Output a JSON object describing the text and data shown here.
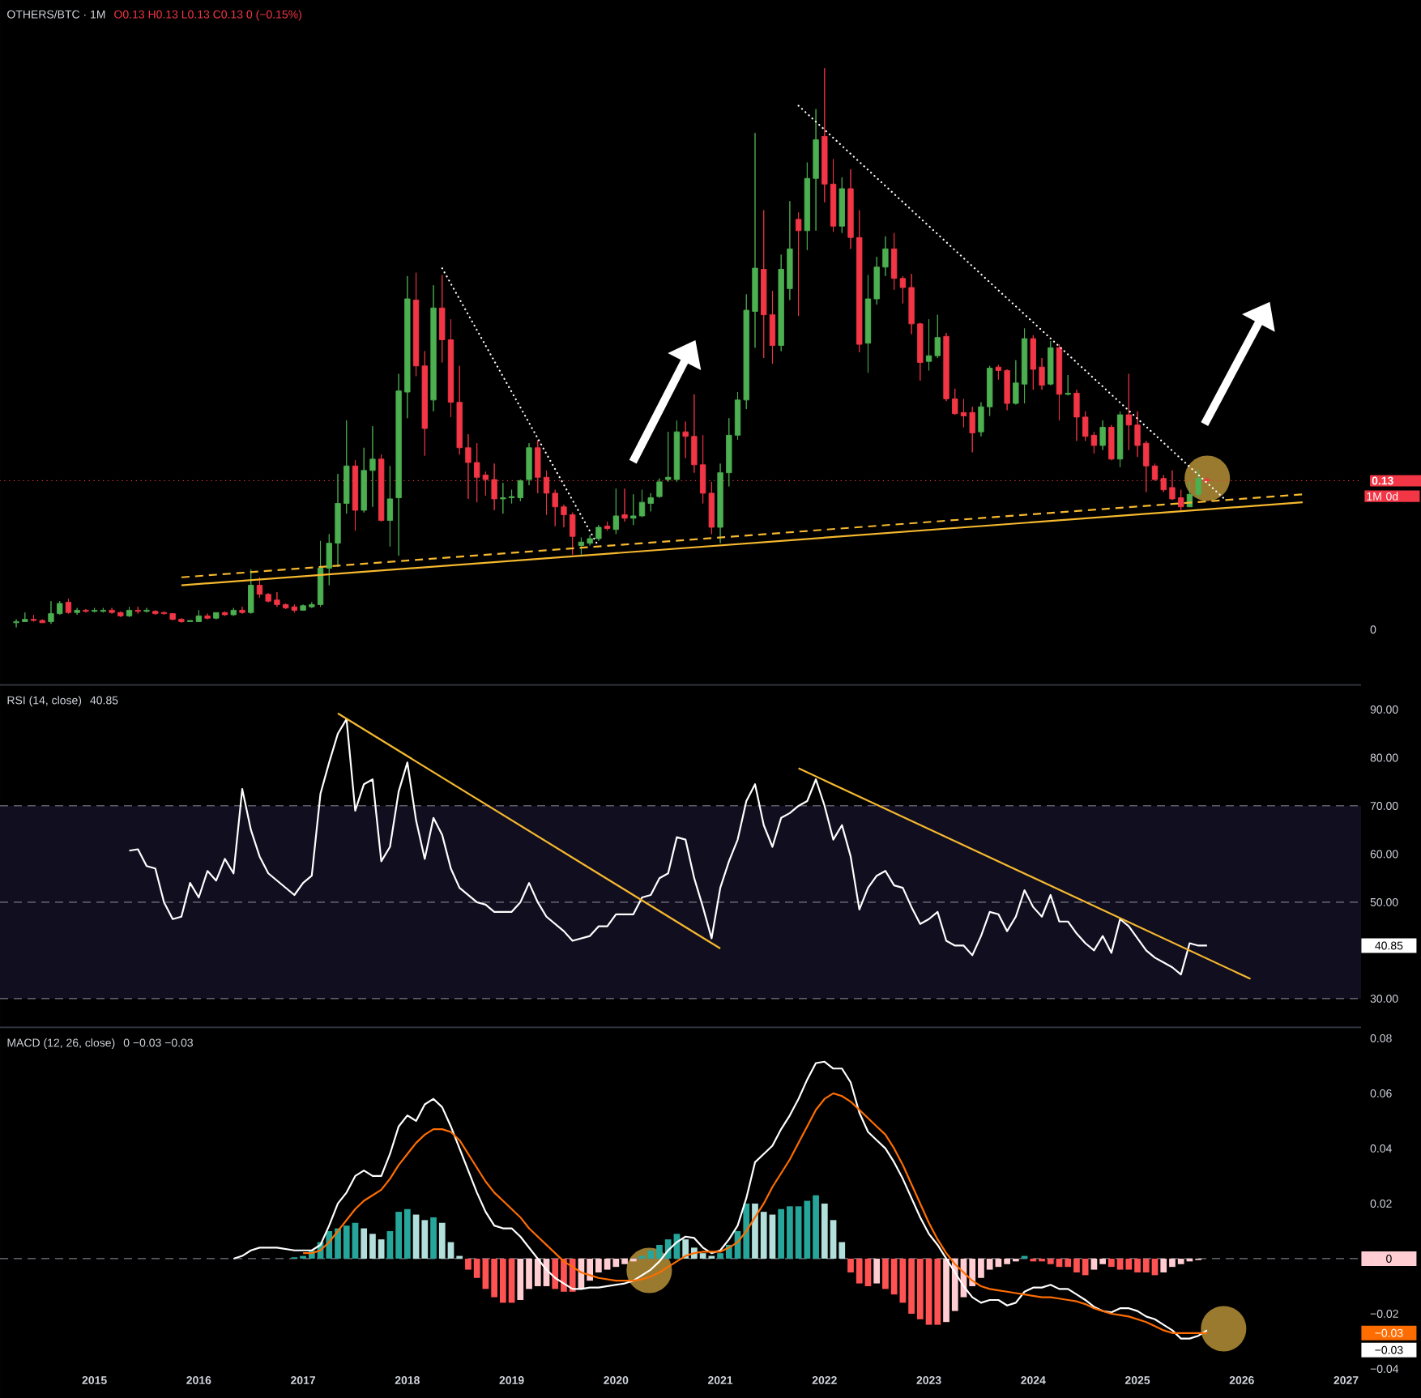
{
  "chart_data": [
    {
      "type": "candlestick",
      "title": "OTHERS/BTC · 1M",
      "subtitle": "O0.13 H0.13 L0.13 C0.13 0 (−0.15%)",
      "x": [
        "2014-04",
        "2014-05",
        "2014-06",
        "2014-07",
        "2014-08",
        "2014-09",
        "2014-10",
        "2014-11",
        "2014-12",
        "2015-01",
        "2015-02",
        "2015-03",
        "2015-04",
        "2015-05",
        "2015-06",
        "2015-07",
        "2015-08",
        "2015-09",
        "2015-10",
        "2015-11",
        "2015-12",
        "2016-01",
        "2016-02",
        "2016-03",
        "2016-04",
        "2016-05",
        "2016-06",
        "2016-07",
        "2016-08",
        "2016-09",
        "2016-10",
        "2016-11",
        "2016-12",
        "2017-01",
        "2017-02",
        "2017-03",
        "2017-04",
        "2017-05",
        "2017-06",
        "2017-07",
        "2017-08",
        "2017-09",
        "2017-10",
        "2017-11",
        "2017-12",
        "2018-01",
        "2018-02",
        "2018-03",
        "2018-04",
        "2018-05",
        "2018-06",
        "2018-07",
        "2018-08",
        "2018-09",
        "2018-10",
        "2018-11",
        "2018-12",
        "2019-01",
        "2019-02",
        "2019-03",
        "2019-04",
        "2019-05",
        "2019-06",
        "2019-07",
        "2019-08",
        "2019-09",
        "2019-10",
        "2019-11",
        "2019-12",
        "2020-01",
        "2020-02",
        "2020-03",
        "2020-04",
        "2020-05",
        "2020-06",
        "2020-07",
        "2020-08",
        "2020-09",
        "2020-10",
        "2020-11",
        "2020-12",
        "2021-01",
        "2021-02",
        "2021-03",
        "2021-04",
        "2021-05",
        "2021-06",
        "2021-07",
        "2021-08",
        "2021-09",
        "2021-10",
        "2021-11",
        "2021-12",
        "2022-01",
        "2022-02",
        "2022-03",
        "2022-04",
        "2022-05",
        "2022-06",
        "2022-07",
        "2022-08",
        "2022-09",
        "2022-10",
        "2022-11",
        "2022-12",
        "2023-01",
        "2023-02",
        "2023-03",
        "2023-04",
        "2023-05",
        "2023-06",
        "2023-07",
        "2023-08",
        "2023-09",
        "2023-10",
        "2023-11",
        "2023-12",
        "2024-01",
        "2024-02",
        "2024-03",
        "2024-04",
        "2024-05",
        "2024-06",
        "2024-07",
        "2024-08",
        "2024-09",
        "2024-10",
        "2024-11",
        "2024-12",
        "2025-01",
        "2025-02",
        "2025-03",
        "2025-04",
        "2025-05",
        "2025-06",
        "2025-07",
        "2025-08",
        "2025-09"
      ],
      "ohlc": [
        [
          0.006,
          0.009,
          0.002,
          0.007
        ],
        [
          0.007,
          0.015,
          0.007,
          0.009
        ],
        [
          0.009,
          0.013,
          0.007,
          0.008
        ],
        [
          0.008,
          0.009,
          0.006,
          0.006
        ],
        [
          0.007,
          0.025,
          0.005,
          0.014
        ],
        [
          0.014,
          0.025,
          0.013,
          0.023
        ],
        [
          0.024,
          0.027,
          0.014,
          0.015
        ],
        [
          0.015,
          0.019,
          0.013,
          0.017
        ],
        [
          0.017,
          0.018,
          0.015,
          0.016
        ],
        [
          0.016,
          0.019,
          0.015,
          0.017
        ],
        [
          0.016,
          0.019,
          0.015,
          0.017
        ],
        [
          0.017,
          0.019,
          0.014,
          0.015
        ],
        [
          0.015,
          0.016,
          0.011,
          0.012
        ],
        [
          0.012,
          0.02,
          0.011,
          0.017
        ],
        [
          0.017,
          0.02,
          0.014,
          0.016
        ],
        [
          0.016,
          0.019,
          0.015,
          0.017
        ],
        [
          0.016,
          0.017,
          0.013,
          0.014
        ],
        [
          0.015,
          0.016,
          0.013,
          0.014
        ],
        [
          0.014,
          0.014,
          0.008,
          0.009
        ],
        [
          0.009,
          0.01,
          0.006,
          0.007
        ],
        [
          0.007,
          0.008,
          0.007,
          0.008
        ],
        [
          0.007,
          0.017,
          0.007,
          0.012
        ],
        [
          0.012,
          0.014,
          0.009,
          0.01
        ],
        [
          0.01,
          0.015,
          0.009,
          0.015
        ],
        [
          0.015,
          0.016,
          0.012,
          0.013
        ],
        [
          0.013,
          0.019,
          0.012,
          0.017
        ],
        [
          0.017,
          0.02,
          0.014,
          0.015
        ],
        [
          0.015,
          0.053,
          0.014,
          0.039
        ],
        [
          0.039,
          0.046,
          0.028,
          0.031
        ],
        [
          0.031,
          0.032,
          0.024,
          0.025
        ],
        [
          0.026,
          0.033,
          0.02,
          0.022
        ],
        [
          0.022,
          0.023,
          0.018,
          0.019
        ],
        [
          0.02,
          0.022,
          0.015,
          0.017
        ],
        [
          0.017,
          0.022,
          0.017,
          0.021
        ],
        [
          0.02,
          0.024,
          0.019,
          0.022
        ],
        [
          0.022,
          0.078,
          0.02,
          0.054
        ],
        [
          0.054,
          0.084,
          0.039,
          0.076
        ],
        [
          0.076,
          0.137,
          0.055,
          0.111
        ],
        [
          0.111,
          0.184,
          0.102,
          0.144
        ],
        [
          0.144,
          0.149,
          0.087,
          0.105
        ],
        [
          0.105,
          0.16,
          0.103,
          0.14
        ],
        [
          0.14,
          0.179,
          0.108,
          0.15
        ],
        [
          0.15,
          0.154,
          0.095,
          0.096
        ],
        [
          0.096,
          0.144,
          0.073,
          0.115
        ],
        [
          0.116,
          0.225,
          0.065,
          0.21
        ],
        [
          0.209,
          0.311,
          0.186,
          0.291
        ],
        [
          0.29,
          0.314,
          0.223,
          0.232
        ],
        [
          0.232,
          0.245,
          0.153,
          0.177
        ],
        [
          0.202,
          0.303,
          0.192,
          0.283
        ],
        [
          0.283,
          0.312,
          0.235,
          0.255
        ],
        [
          0.255,
          0.273,
          0.187,
          0.2
        ],
        [
          0.2,
          0.232,
          0.154,
          0.16
        ],
        [
          0.16,
          0.172,
          0.115,
          0.147
        ],
        [
          0.147,
          0.164,
          0.112,
          0.134
        ],
        [
          0.136,
          0.139,
          0.118,
          0.132
        ],
        [
          0.132,
          0.146,
          0.105,
          0.115
        ],
        [
          0.115,
          0.129,
          0.102,
          0.116
        ],
        [
          0.116,
          0.123,
          0.111,
          0.117
        ],
        [
          0.116,
          0.132,
          0.113,
          0.131
        ],
        [
          0.132,
          0.164,
          0.127,
          0.16
        ],
        [
          0.16,
          0.167,
          0.12,
          0.134
        ],
        [
          0.134,
          0.14,
          0.101,
          0.12
        ],
        [
          0.12,
          0.123,
          0.091,
          0.108
        ],
        [
          0.108,
          0.11,
          0.09,
          0.101
        ],
        [
          0.101,
          0.103,
          0.066,
          0.082
        ],
        [
          0.074,
          0.081,
          0.066,
          0.077
        ],
        [
          0.076,
          0.083,
          0.074,
          0.08
        ],
        [
          0.08,
          0.092,
          0.078,
          0.09
        ],
        [
          0.091,
          0.095,
          0.087,
          0.089
        ],
        [
          0.088,
          0.124,
          0.084,
          0.1
        ],
        [
          0.101,
          0.124,
          0.095,
          0.098
        ],
        [
          0.098,
          0.119,
          0.092,
          0.1
        ],
        [
          0.1,
          0.123,
          0.099,
          0.112
        ],
        [
          0.111,
          0.12,
          0.104,
          0.116
        ],
        [
          0.117,
          0.133,
          0.116,
          0.13
        ],
        [
          0.132,
          0.174,
          0.13,
          0.134
        ],
        [
          0.132,
          0.184,
          0.13,
          0.174
        ],
        [
          0.174,
          0.183,
          0.151,
          0.17
        ],
        [
          0.17,
          0.207,
          0.138,
          0.145
        ],
        [
          0.145,
          0.171,
          0.111,
          0.12
        ],
        [
          0.12,
          0.13,
          0.084,
          0.09
        ],
        [
          0.09,
          0.146,
          0.076,
          0.138
        ],
        [
          0.138,
          0.186,
          0.126,
          0.171
        ],
        [
          0.171,
          0.209,
          0.167,
          0.202
        ],
        [
          0.202,
          0.295,
          0.194,
          0.281
        ],
        [
          0.28,
          0.437,
          0.248,
          0.318
        ],
        [
          0.317,
          0.369,
          0.239,
          0.277
        ],
        [
          0.277,
          0.298,
          0.234,
          0.25
        ],
        [
          0.25,
          0.33,
          0.245,
          0.317
        ],
        [
          0.3,
          0.377,
          0.29,
          0.335
        ],
        [
          0.361,
          0.367,
          0.276,
          0.351
        ],
        [
          0.351,
          0.411,
          0.334,
          0.397
        ],
        [
          0.397,
          0.458,
          0.351,
          0.431
        ],
        [
          0.434,
          0.494,
          0.376,
          0.392
        ],
        [
          0.392,
          0.414,
          0.35,
          0.355
        ],
        [
          0.355,
          0.398,
          0.349,
          0.388
        ],
        [
          0.388,
          0.405,
          0.335,
          0.345
        ],
        [
          0.345,
          0.369,
          0.244,
          0.251
        ],
        [
          0.252,
          0.312,
          0.226,
          0.291
        ],
        [
          0.291,
          0.328,
          0.286,
          0.319
        ],
        [
          0.319,
          0.346,
          0.311,
          0.335
        ],
        [
          0.335,
          0.349,
          0.299,
          0.309
        ],
        [
          0.309,
          0.311,
          0.287,
          0.301
        ],
        [
          0.301,
          0.313,
          0.26,
          0.269
        ],
        [
          0.269,
          0.27,
          0.219,
          0.235
        ],
        [
          0.236,
          0.273,
          0.228,
          0.241
        ],
        [
          0.241,
          0.277,
          0.239,
          0.257
        ],
        [
          0.258,
          0.261,
          0.201,
          0.203
        ],
        [
          0.203,
          0.212,
          0.189,
          0.19
        ],
        [
          0.191,
          0.203,
          0.178,
          0.188
        ],
        [
          0.191,
          0.196,
          0.156,
          0.173
        ],
        [
          0.174,
          0.2,
          0.17,
          0.196
        ],
        [
          0.196,
          0.232,
          0.188,
          0.23
        ],
        [
          0.231,
          0.233,
          0.22,
          0.228
        ],
        [
          0.228,
          0.229,
          0.193,
          0.199
        ],
        [
          0.199,
          0.237,
          0.198,
          0.217
        ],
        [
          0.216,
          0.265,
          0.199,
          0.256
        ],
        [
          0.256,
          0.259,
          0.211,
          0.229
        ],
        [
          0.231,
          0.239,
          0.211,
          0.215
        ],
        [
          0.216,
          0.254,
          0.215,
          0.248
        ],
        [
          0.248,
          0.251,
          0.184,
          0.207
        ],
        [
          0.207,
          0.224,
          0.206,
          0.208
        ],
        [
          0.208,
          0.211,
          0.166,
          0.187
        ],
        [
          0.187,
          0.192,
          0.166,
          0.17
        ],
        [
          0.171,
          0.174,
          0.155,
          0.162
        ],
        [
          0.162,
          0.184,
          0.158,
          0.178
        ],
        [
          0.178,
          0.18,
          0.149,
          0.15
        ],
        [
          0.15,
          0.192,
          0.143,
          0.189
        ],
        [
          0.189,
          0.225,
          0.158,
          0.18
        ],
        [
          0.18,
          0.192,
          0.152,
          0.162
        ],
        [
          0.164,
          0.166,
          0.121,
          0.144
        ],
        [
          0.144,
          0.146,
          0.131,
          0.132
        ],
        [
          0.133,
          0.136,
          0.121,
          0.123
        ],
        [
          0.125,
          0.14,
          0.114,
          0.115
        ],
        [
          0.116,
          0.123,
          0.104,
          0.108
        ],
        [
          0.108,
          0.131,
          0.108,
          0.119
        ],
        [
          0.119,
          0.141,
          0.116,
          0.133
        ],
        [
          0.132,
          0.134,
          0.129,
          0.131
        ]
      ],
      "series": [
        {
          "type": "line",
          "x": [
            "2018-05",
            "2019-11"
          ],
          "values": [
            0.318,
            0.073
          ],
          "color": "#ffffff",
          "line_style": "dotted"
        },
        {
          "type": "line",
          "x": [
            "2021-10",
            "2025-11"
          ],
          "values": [
            0.461,
            0.115
          ],
          "color": "#ffffff",
          "line_style": "dotted"
        },
        {
          "type": "line",
          "x": [
            "2015-11",
            "2026-08"
          ],
          "values": [
            0.039,
            0.112
          ],
          "color": "#f5b82e",
          "line_style": "solid"
        },
        {
          "type": "line",
          "x": [
            "2015-11",
            "2026-08"
          ],
          "values": [
            0.046,
            0.119
          ],
          "color": "#f5b82e",
          "line_style": "dashed"
        }
      ],
      "xlim": [
        "2014-02-05",
        "2027-02-23"
      ],
      "ylim": [
        -0.048,
        0.554
      ],
      "yticks": [
        {
          "value": 0,
          "label": "0"
        },
        {
          "value": 0.131,
          "label": "0.13"
        }
      ],
      "tick_labels": "y",
      "ref_lines": [
        {
          "axis": "y",
          "value": 0.131,
          "color": "#f23645",
          "line_style": "dotted"
        }
      ],
      "annotations": [
        "1M 0d"
      ]
    },
    {
      "type": "line",
      "title": "RSI (14, close)",
      "subtitle": "40.85",
      "x": [
        "2015-05",
        "2015-06",
        "2015-07",
        "2015-08",
        "2015-09",
        "2015-10",
        "2015-11",
        "2015-12",
        "2016-01",
        "2016-02",
        "2016-03",
        "2016-04",
        "2016-05",
        "2016-06",
        "2016-07",
        "2016-08",
        "2016-09",
        "2016-10",
        "2016-11",
        "2016-12",
        "2017-01",
        "2017-02",
        "2017-03",
        "2017-04",
        "2017-05",
        "2017-06",
        "2017-07",
        "2017-08",
        "2017-09",
        "2017-10",
        "2017-11",
        "2017-12",
        "2018-01",
        "2018-02",
        "2018-03",
        "2018-04",
        "2018-05",
        "2018-06",
        "2018-07",
        "2018-08",
        "2018-09",
        "2018-10",
        "2018-11",
        "2018-12",
        "2019-01",
        "2019-02",
        "2019-03",
        "2019-04",
        "2019-05",
        "2019-06",
        "2019-07",
        "2019-08",
        "2019-09",
        "2019-10",
        "2019-11",
        "2019-12",
        "2020-01",
        "2020-02",
        "2020-03",
        "2020-04",
        "2020-05",
        "2020-06",
        "2020-07",
        "2020-08",
        "2020-09",
        "2020-10",
        "2020-11",
        "2020-12",
        "2021-01",
        "2021-02",
        "2021-03",
        "2021-04",
        "2021-05",
        "2021-06",
        "2021-07",
        "2021-08",
        "2021-09",
        "2021-10",
        "2021-11",
        "2021-12",
        "2022-01",
        "2022-02",
        "2022-03",
        "2022-04",
        "2022-05",
        "2022-06",
        "2022-07",
        "2022-08",
        "2022-09",
        "2022-10",
        "2022-11",
        "2022-12",
        "2023-01",
        "2023-02",
        "2023-03",
        "2023-04",
        "2023-05",
        "2023-06",
        "2023-07",
        "2023-08",
        "2023-09",
        "2023-10",
        "2023-11",
        "2023-12",
        "2024-01",
        "2024-02",
        "2024-03",
        "2024-04",
        "2024-05",
        "2024-06",
        "2024-07",
        "2024-08",
        "2024-09",
        "2024-10",
        "2024-11",
        "2024-12",
        "2025-01",
        "2025-02",
        "2025-03",
        "2025-04",
        "2025-05",
        "2025-06",
        "2025-07",
        "2025-08",
        "2025-09"
      ],
      "series": [
        {
          "values": [
            60.7,
            61,
            57.5,
            57,
            50,
            46.5,
            47,
            54,
            51,
            56.5,
            54.5,
            59,
            56,
            73.5,
            65,
            59.5,
            56,
            54.5,
            53,
            51.5,
            54,
            55.5,
            72.5,
            79,
            85,
            88,
            69,
            74.5,
            75.5,
            58.5,
            61.5,
            73,
            79,
            67,
            59,
            67.5,
            64,
            57,
            53,
            51.5,
            50,
            49.5,
            48,
            48,
            48,
            50,
            54,
            50,
            47,
            45.5,
            44,
            42,
            42.5,
            43,
            45,
            45,
            47.5,
            47.5,
            47.5,
            51,
            51.5,
            55,
            56,
            63.5,
            63,
            55,
            49,
            42.5,
            53,
            58.5,
            63,
            71,
            74.5,
            66,
            61.5,
            67.5,
            68.5,
            70,
            71,
            75.5,
            70,
            63,
            66,
            59.5,
            48.5,
            53,
            55.5,
            56.5,
            53.5,
            53,
            49,
            45.5,
            46.5,
            48,
            42,
            41,
            41,
            39,
            43,
            48,
            47.5,
            44,
            47,
            52.5,
            49,
            47,
            51.5,
            46,
            46,
            43.5,
            41.5,
            40,
            43,
            39.5,
            46.5,
            45,
            42.5,
            40,
            38.5,
            37.5,
            36.5,
            35,
            41.5,
            41,
            41
          ],
          "color": "#ffffff"
        },
        {
          "x": [
            "2017-05",
            "2021-01"
          ],
          "values": [
            89.2,
            40.4
          ],
          "color": "#f5b82e"
        },
        {
          "x": [
            "2021-10",
            "2026-02"
          ],
          "values": [
            77.8,
            34.1
          ],
          "color": "#f5b82e"
        }
      ],
      "xlim": [
        "2014-02-05",
        "2027-02-23"
      ],
      "ylim": [
        24.2,
        94.9
      ],
      "yticks": [
        {
          "value": 30,
          "label": "30.00"
        },
        {
          "value": 50,
          "label": "50.00"
        },
        {
          "value": 60,
          "label": "60.00"
        },
        {
          "value": 70,
          "label": "70.00"
        },
        {
          "value": 80,
          "label": "80.00"
        },
        {
          "value": 90,
          "label": "90.00"
        }
      ],
      "tick_labels": "y",
      "bands": [
        {
          "axis": "y",
          "from": 30,
          "to": 70,
          "color": "#110e20"
        }
      ],
      "ref_lines": [
        {
          "axis": "y",
          "value": 70,
          "color": "#787b86",
          "line_style": "dashed"
        },
        {
          "axis": "y",
          "value": 50,
          "color": "#787b86",
          "line_style": "dashed"
        },
        {
          "axis": "y",
          "value": 30,
          "color": "#787b86",
          "line_style": "dashed"
        }
      ],
      "annotations": [
        "40.85"
      ]
    },
    {
      "type": "line",
      "title": "MACD (12, 26, close)",
      "subtitle": "0 −0.03 −0.03",
      "x": [
        "2016-05",
        "2016-06",
        "2016-07",
        "2016-08",
        "2016-09",
        "2016-10",
        "2016-11",
        "2016-12",
        "2017-01",
        "2017-02",
        "2017-03",
        "2017-04",
        "2017-05",
        "2017-06",
        "2017-07",
        "2017-08",
        "2017-09",
        "2017-10",
        "2017-11",
        "2017-12",
        "2018-01",
        "2018-02",
        "2018-03",
        "2018-04",
        "2018-05",
        "2018-06",
        "2018-07",
        "2018-08",
        "2018-09",
        "2018-10",
        "2018-11",
        "2018-12",
        "2019-01",
        "2019-02",
        "2019-03",
        "2019-04",
        "2019-05",
        "2019-06",
        "2019-07",
        "2019-08",
        "2019-09",
        "2019-10",
        "2019-11",
        "2019-12",
        "2020-01",
        "2020-02",
        "2020-03",
        "2020-04",
        "2020-05",
        "2020-06",
        "2020-07",
        "2020-08",
        "2020-09",
        "2020-10",
        "2020-11",
        "2020-12",
        "2021-01",
        "2021-02",
        "2021-03",
        "2021-04",
        "2021-05",
        "2021-06",
        "2021-07",
        "2021-08",
        "2021-09",
        "2021-10",
        "2021-11",
        "2021-12",
        "2022-01",
        "2022-02",
        "2022-03",
        "2022-04",
        "2022-05",
        "2022-06",
        "2022-07",
        "2022-08",
        "2022-09",
        "2022-10",
        "2022-11",
        "2022-12",
        "2023-01",
        "2023-02",
        "2023-03",
        "2023-04",
        "2023-05",
        "2023-06",
        "2023-07",
        "2023-08",
        "2023-09",
        "2023-10",
        "2023-11",
        "2023-12",
        "2024-01",
        "2024-02",
        "2024-03",
        "2024-04",
        "2024-05",
        "2024-06",
        "2024-07",
        "2024-08",
        "2024-09",
        "2024-10",
        "2024-11",
        "2024-12",
        "2025-01",
        "2025-02",
        "2025-03",
        "2025-04",
        "2025-05",
        "2025-06",
        "2025-07",
        "2025-08",
        "2025-09"
      ],
      "series": [
        {
          "type": "bar",
          "values": [
            null,
            null,
            null,
            null,
            null,
            null,
            null,
            0.0005,
            0.001,
            0.003,
            0.006,
            0.01,
            0.011,
            0.012,
            0.013,
            0.011,
            0.009,
            0.007,
            0.01,
            0.017,
            0.018,
            0.016,
            0.014,
            0.015,
            0.013,
            0.006,
            0.001,
            -0.004,
            -0.007,
            -0.011,
            -0.014,
            -0.016,
            -0.016,
            -0.015,
            -0.011,
            -0.01,
            -0.01,
            -0.011,
            -0.012,
            -0.012,
            -0.011,
            -0.008,
            -0.005,
            -0.004,
            -0.003,
            -0.002,
            -0.001,
            0.001,
            0.003,
            0.005,
            0.007,
            0.009,
            0.007,
            0.004,
            0.002,
            0.001,
            0.002,
            0.005,
            0.01,
            0.02,
            0.02,
            0.017,
            0.016,
            0.018,
            0.019,
            0.019,
            0.021,
            0.023,
            0.02,
            0.014,
            0.006,
            -0.005,
            -0.009,
            -0.01,
            -0.009,
            -0.011,
            -0.013,
            -0.016,
            -0.02,
            -0.022,
            -0.024,
            -0.024,
            -0.023,
            -0.019,
            -0.014,
            -0.01,
            -0.007,
            -0.004,
            -0.003,
            -0.002,
            -0.001,
            0.001,
            -0.001,
            -0.001,
            -0.002,
            -0.003,
            -0.003,
            -0.005,
            -0.006,
            -0.004,
            -0.002,
            -0.003,
            -0.004,
            -0.004,
            -0.005,
            -0.005,
            -0.006,
            -0.005,
            -0.003,
            -0.002,
            -0.001,
            -0.0005,
            0
          ],
          "colors": [
            null,
            null,
            null,
            null,
            null,
            null,
            null,
            "#26a69a",
            "#26a69a",
            "#26a69a",
            "#26a69a",
            "#26a69a",
            "#26a69a",
            "#26a69a",
            "#26a69a",
            "#b2dfdb",
            "#b2dfdb",
            "#b2dfdb",
            "#26a69a",
            "#26a69a",
            "#26a69a",
            "#b2dfdb",
            "#b2dfdb",
            "#26a69a",
            "#b2dfdb",
            "#b2dfdb",
            "#b2dfdb",
            "#ff5252",
            "#ff5252",
            "#ff5252",
            "#ff5252",
            "#ff5252",
            "#ff5252",
            "#ffcdd2",
            "#ffcdd2",
            "#ffcdd2",
            "#ffcdd2",
            "#ff5252",
            "#ff5252",
            "#ff5252",
            "#ffcdd2",
            "#ffcdd2",
            "#ffcdd2",
            "#ffcdd2",
            "#ffcdd2",
            "#ffcdd2",
            "#ffcdd2",
            "#26a69a",
            "#26a69a",
            "#26a69a",
            "#26a69a",
            "#26a69a",
            "#b2dfdb",
            "#b2dfdb",
            "#b2dfdb",
            "#b2dfdb",
            "#26a69a",
            "#26a69a",
            "#26a69a",
            "#26a69a",
            "#b2dfdb",
            "#b2dfdb",
            "#b2dfdb",
            "#26a69a",
            "#26a69a",
            "#26a69a",
            "#26a69a",
            "#26a69a",
            "#b2dfdb",
            "#b2dfdb",
            "#b2dfdb",
            "#ff5252",
            "#ff5252",
            "#ff5252",
            "#ffcdd2",
            "#ff5252",
            "#ff5252",
            "#ff5252",
            "#ff5252",
            "#ff5252",
            "#ff5252",
            "#ff5252",
            "#ffcdd2",
            "#ffcdd2",
            "#ffcdd2",
            "#ffcdd2",
            "#ffcdd2",
            "#ffcdd2",
            "#ffcdd2",
            "#ffcdd2",
            "#ffcdd2",
            "#26a69a",
            "#ff5252",
            "#ff5252",
            "#ff5252",
            "#ff5252",
            "#ff5252",
            "#ff5252",
            "#ff5252",
            "#ffcdd2",
            "#ffcdd2",
            "#ff5252",
            "#ff5252",
            "#ff5252",
            "#ff5252",
            "#ff5252",
            "#ff5252",
            "#ffcdd2",
            "#ffcdd2",
            "#ffcdd2",
            "#ffcdd2",
            "#ffcdd2",
            "#ffcdd2"
          ]
        },
        {
          "values": [
            0,
            0.001,
            0.003,
            0.004,
            0.004,
            0.004,
            0.0035,
            0.003,
            0.003,
            0.003,
            0.005,
            0.012,
            0.02,
            0.024,
            0.03,
            0.032,
            0.03,
            0.03,
            0.038,
            0.048,
            0.052,
            0.05,
            0.056,
            0.058,
            0.055,
            0.048,
            0.04,
            0.032,
            0.024,
            0.017,
            0.012,
            0.011,
            0.011,
            0.008,
            0.004,
            0,
            -0.004,
            -0.007,
            -0.009,
            -0.011,
            -0.011,
            -0.0105,
            -0.0105,
            -0.01,
            -0.0095,
            -0.009,
            -0.008,
            -0.006,
            -0.004,
            -0.001,
            0.003,
            0.006,
            0.008,
            0.0075,
            0.004,
            0.002,
            0.003,
            0.007,
            0.012,
            0.022,
            0.035,
            0.038,
            0.041,
            0.047,
            0.052,
            0.058,
            0.065,
            0.071,
            0.0715,
            0.069,
            0.069,
            0.064,
            0.053,
            0.046,
            0.043,
            0.04,
            0.035,
            0.029,
            0.022,
            0.015,
            0.009,
            0.005,
            0,
            -0.005,
            -0.01,
            -0.014,
            -0.016,
            -0.015,
            -0.015,
            -0.017,
            -0.016,
            -0.012,
            -0.0105,
            -0.0105,
            -0.0095,
            -0.011,
            -0.011,
            -0.013,
            -0.015,
            -0.0175,
            -0.019,
            -0.0195,
            -0.018,
            -0.018,
            -0.019,
            -0.021,
            -0.022,
            -0.024,
            -0.026,
            -0.029,
            -0.029,
            -0.028,
            -0.026
          ],
          "color": "#ffffff"
        },
        {
          "values": [
            null,
            null,
            null,
            null,
            null,
            null,
            null,
            null,
            0.002,
            0.002,
            0.003,
            0.006,
            0.01,
            0.014,
            0.018,
            0.021,
            0.023,
            0.025,
            0.029,
            0.034,
            0.038,
            0.042,
            0.045,
            0.047,
            0.047,
            0.046,
            0.043,
            0.038,
            0.033,
            0.028,
            0.024,
            0.021,
            0.018,
            0.015,
            0.011,
            0.008,
            0.005,
            0.002,
            -0.001,
            -0.003,
            -0.005,
            -0.006,
            -0.007,
            -0.0075,
            -0.008,
            -0.008,
            -0.008,
            -0.0075,
            -0.0065,
            -0.005,
            -0.003,
            -0.001,
            0.001,
            0.002,
            0.0025,
            0.0025,
            0.0025,
            0.004,
            0.006,
            0.01,
            0.015,
            0.02,
            0.026,
            0.031,
            0.036,
            0.042,
            0.048,
            0.054,
            0.058,
            0.06,
            0.059,
            0.057,
            0.054,
            0.051,
            0.048,
            0.045,
            0.04,
            0.034,
            0.027,
            0.02,
            0.013,
            0.007,
            0.002,
            -0.002,
            -0.005,
            -0.008,
            -0.01,
            -0.011,
            -0.0115,
            -0.012,
            -0.0125,
            -0.013,
            -0.0135,
            -0.014,
            -0.014,
            -0.0145,
            -0.015,
            -0.0155,
            -0.0165,
            -0.018,
            -0.019,
            -0.02,
            -0.0205,
            -0.021,
            -0.022,
            -0.023,
            -0.0245,
            -0.026,
            -0.027,
            -0.027,
            -0.027,
            -0.027,
            -0.027
          ],
          "color": "#ff6d00"
        }
      ],
      "xlim": [
        "2014-02-05",
        "2027-02-23"
      ],
      "ylim": [
        -0.04,
        0.0836
      ],
      "xticks": [
        "2015",
        "2016",
        "2017",
        "2018",
        "2019",
        "2020",
        "2021",
        "2022",
        "2023",
        "2024",
        "2025",
        "2026",
        "2027"
      ],
      "yticks": [
        0.08,
        0.06,
        0.04,
        0.02,
        {
          "value": -0.02,
          "label": "−0.02"
        },
        {
          "value": -0.04,
          "label": "−0.04"
        }
      ],
      "ref_lines": [
        {
          "axis": "y",
          "value": 0,
          "color": "#787b86",
          "line_style": "dashed"
        }
      ],
      "annotations": [
        "0",
        "−0.03",
        "−0.03"
      ]
    }
  ]
}
